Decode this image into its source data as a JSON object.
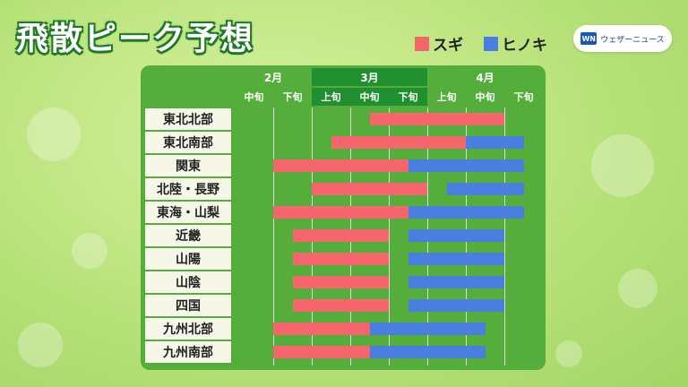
{
  "title": "飛散ピーク予想",
  "brand": {
    "logo_text": "WN",
    "name": "ウェザーニュース"
  },
  "colors": {
    "cedar": "#f5656c",
    "cypress": "#4a7fe0",
    "header_dark": "#1f8f2f",
    "header": "#55ad3c"
  },
  "legend": [
    {
      "label": "スギ",
      "color": "#f5656c"
    },
    {
      "label": "ヒノキ",
      "color": "#4a7fe0"
    }
  ],
  "chart_data": {
    "type": "gantt",
    "months": [
      "2月",
      "3月",
      "4月"
    ],
    "periods": [
      "2月中旬",
      "2月下旬",
      "3月上旬",
      "3月中旬",
      "3月下旬",
      "4月上旬",
      "4月中旬",
      "4月下旬"
    ],
    "period_labels": [
      "中旬",
      "下旬",
      "上旬",
      "中旬",
      "下旬",
      "上旬",
      "中旬",
      "下旬"
    ],
    "period_unit_note": "values are positions in 旬 units, 0 = start of 2月中旬, 8 = end of 4月下旬",
    "regions": [
      {
        "name": "東北北部",
        "cedar": [
          3.5,
          7.0
        ],
        "cypress": null
      },
      {
        "name": "東北南部",
        "cedar": [
          2.5,
          6.0
        ],
        "cypress": [
          6.0,
          7.5
        ]
      },
      {
        "name": "関東",
        "cedar": [
          1.0,
          4.5
        ],
        "cypress": [
          4.5,
          7.5
        ]
      },
      {
        "name": "北陸・長野",
        "cedar": [
          2.0,
          5.0
        ],
        "cypress": [
          5.5,
          7.5
        ]
      },
      {
        "name": "東海・山梨",
        "cedar": [
          1.0,
          4.5
        ],
        "cypress": [
          4.5,
          7.5
        ]
      },
      {
        "name": "近畿",
        "cedar": [
          1.5,
          4.0
        ],
        "cypress": [
          4.5,
          7.0
        ]
      },
      {
        "name": "山陽",
        "cedar": [
          1.5,
          4.0
        ],
        "cypress": [
          4.5,
          7.0
        ]
      },
      {
        "name": "山陰",
        "cedar": [
          1.5,
          4.0
        ],
        "cypress": [
          4.5,
          7.0
        ]
      },
      {
        "name": "四国",
        "cedar": [
          1.5,
          4.0
        ],
        "cypress": [
          4.5,
          7.0
        ]
      },
      {
        "name": "九州北部",
        "cedar": [
          1.0,
          3.5
        ],
        "cypress": [
          3.5,
          6.5
        ]
      },
      {
        "name": "九州南部",
        "cedar": [
          1.0,
          3.5
        ],
        "cypress": [
          3.5,
          6.5
        ]
      }
    ]
  }
}
